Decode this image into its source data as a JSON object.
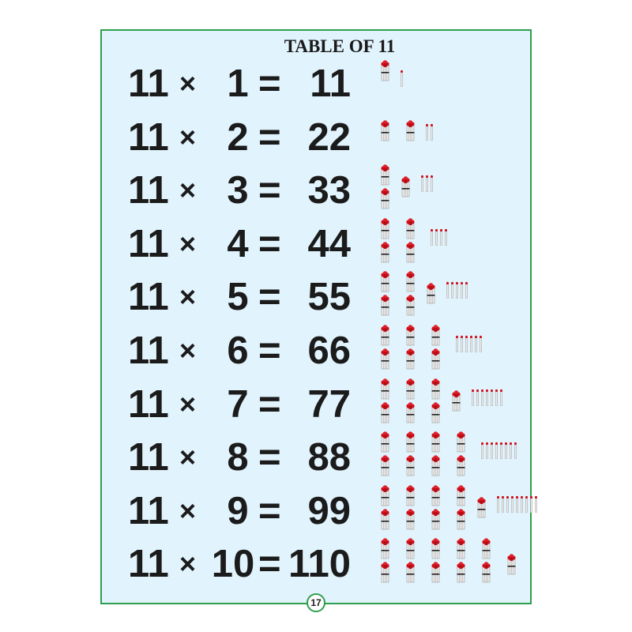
{
  "title": "TABLE OF 11",
  "page_number": "17",
  "colors": {
    "border": "#2e9e4f",
    "background": "#e1f3fc",
    "match_head": "#d0101a",
    "stick": "#c8c8c8"
  },
  "icons": {
    "bundle": "matchstick-bundle-icon",
    "single": "matchstick-icon"
  },
  "rows": [
    {
      "a": "11",
      "op": "×",
      "b": "1",
      "eq": "=",
      "result": "11",
      "tens": 1,
      "ones": 1
    },
    {
      "a": "11",
      "op": "×",
      "b": "2",
      "eq": "=",
      "result": "22",
      "tens": 2,
      "ones": 2
    },
    {
      "a": "11",
      "op": "×",
      "b": "3",
      "eq": "=",
      "result": "33",
      "tens": 3,
      "ones": 3
    },
    {
      "a": "11",
      "op": "×",
      "b": "4",
      "eq": "=",
      "result": "44",
      "tens": 4,
      "ones": 4
    },
    {
      "a": "11",
      "op": "×",
      "b": "5",
      "eq": "=",
      "result": "55",
      "tens": 5,
      "ones": 5
    },
    {
      "a": "11",
      "op": "×",
      "b": "6",
      "eq": "=",
      "result": "66",
      "tens": 6,
      "ones": 6
    },
    {
      "a": "11",
      "op": "×",
      "b": "7",
      "eq": "=",
      "result": "77",
      "tens": 7,
      "ones": 7
    },
    {
      "a": "11",
      "op": "×",
      "b": "8",
      "eq": "=",
      "result": "88",
      "tens": 8,
      "ones": 8
    },
    {
      "a": "11",
      "op": "×",
      "b": "9",
      "eq": "=",
      "result": "99",
      "tens": 9,
      "ones": 9
    },
    {
      "a": "11",
      "op": "×",
      "b": "10",
      "eq": "=",
      "result": "110",
      "tens": 11,
      "ones": 0
    }
  ]
}
